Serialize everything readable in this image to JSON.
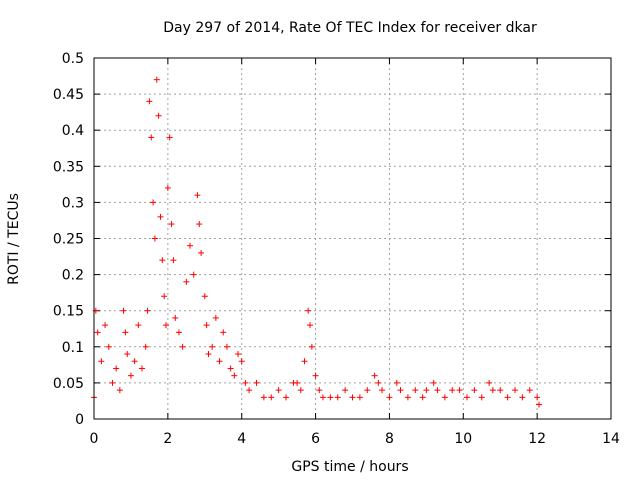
{
  "chart_data": {
    "type": "scatter",
    "title": "Day 297 of 2014, Rate Of TEC Index for receiver dkar",
    "xlabel": "GPS time / hours",
    "ylabel": "ROTI / TECUs",
    "xlim": [
      0,
      14
    ],
    "ylim": [
      0,
      0.5
    ],
    "xticks": [
      "0",
      "2",
      "4",
      "6",
      "8",
      "10",
      "12",
      "14"
    ],
    "yticks": [
      "0",
      "0.05",
      "0.1",
      "0.15",
      "0.2",
      "0.25",
      "0.3",
      "0.35",
      "0.4",
      "0.45",
      "0.5"
    ],
    "grid": true,
    "marker": "+",
    "color": "#ff0000",
    "series": [
      {
        "name": "ROTI",
        "x": [
          0.0,
          0.05,
          0.1,
          0.2,
          0.3,
          0.4,
          0.5,
          0.6,
          0.7,
          0.8,
          0.85,
          0.9,
          1.0,
          1.1,
          1.2,
          1.3,
          1.4,
          1.45,
          1.5,
          1.55,
          1.6,
          1.65,
          1.7,
          1.75,
          1.8,
          1.85,
          1.9,
          1.95,
          2.0,
          2.05,
          2.1,
          2.15,
          2.2,
          2.3,
          2.4,
          2.5,
          2.6,
          2.7,
          2.8,
          2.85,
          2.9,
          3.0,
          3.05,
          3.1,
          3.2,
          3.3,
          3.4,
          3.5,
          3.6,
          3.7,
          3.8,
          3.9,
          4.0,
          4.1,
          4.2,
          4.4,
          4.6,
          4.8,
          5.0,
          5.2,
          5.4,
          5.5,
          5.6,
          5.7,
          5.8,
          5.85,
          5.9,
          6.0,
          6.1,
          6.2,
          6.4,
          6.6,
          6.8,
          7.0,
          7.2,
          7.4,
          7.6,
          7.7,
          7.8,
          8.0,
          8.2,
          8.3,
          8.5,
          8.7,
          8.9,
          9.0,
          9.2,
          9.3,
          9.5,
          9.7,
          9.9,
          10.1,
          10.3,
          10.5,
          10.7,
          10.8,
          11.0,
          11.2,
          11.4,
          11.6,
          11.8,
          12.0,
          12.05
        ],
        "y": [
          0.03,
          0.15,
          0.12,
          0.08,
          0.13,
          0.1,
          0.05,
          0.07,
          0.04,
          0.15,
          0.12,
          0.09,
          0.06,
          0.08,
          0.13,
          0.07,
          0.1,
          0.15,
          0.44,
          0.39,
          0.3,
          0.25,
          0.47,
          0.42,
          0.28,
          0.22,
          0.17,
          0.13,
          0.32,
          0.39,
          0.27,
          0.22,
          0.14,
          0.12,
          0.1,
          0.19,
          0.24,
          0.2,
          0.31,
          0.27,
          0.23,
          0.17,
          0.13,
          0.09,
          0.1,
          0.14,
          0.08,
          0.12,
          0.1,
          0.07,
          0.06,
          0.09,
          0.08,
          0.05,
          0.04,
          0.05,
          0.03,
          0.03,
          0.04,
          0.03,
          0.05,
          0.05,
          0.04,
          0.08,
          0.15,
          0.13,
          0.1,
          0.06,
          0.04,
          0.03,
          0.03,
          0.03,
          0.04,
          0.03,
          0.03,
          0.04,
          0.06,
          0.05,
          0.04,
          0.03,
          0.05,
          0.04,
          0.03,
          0.04,
          0.03,
          0.04,
          0.05,
          0.04,
          0.03,
          0.04,
          0.04,
          0.03,
          0.04,
          0.03,
          0.05,
          0.04,
          0.04,
          0.03,
          0.04,
          0.03,
          0.04,
          0.03,
          0.02
        ]
      }
    ]
  }
}
